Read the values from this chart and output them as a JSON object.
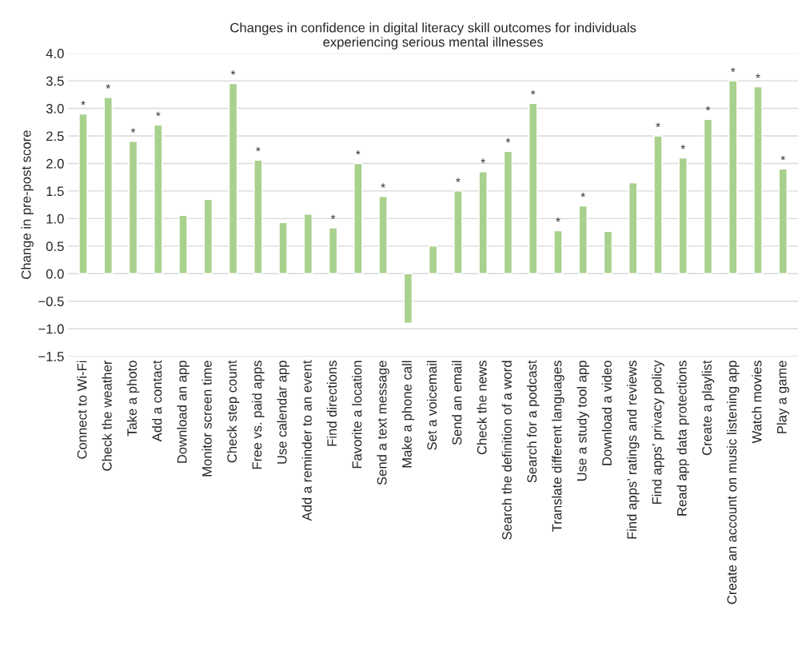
{
  "chart_data": {
    "type": "bar",
    "title": "Changes in confidence in digital literacy skill outcomes for individuals\nexperiencing serious mental illnesses",
    "ylabel": "Change in pre-post score",
    "categories": [
      "Connect to Wi-Fi",
      "Check the weather",
      "Take a photo",
      "Add a contact",
      "Download an app",
      "Monitor screen time",
      "Check step count",
      "Free vs. paid apps",
      "Use calendar app",
      "Add a reminder to an event",
      "Find directions",
      "Favorite a location",
      "Send a text message",
      "Make a phone call",
      "Set a voicemail",
      "Send an email",
      "Check the news",
      "Search the definition of a word",
      "Search for a podcast",
      "Translate different languages",
      "Use a study tool app",
      "Download a video",
      "Find apps’ ratings and reviews",
      "Find apps’ privacy policy",
      "Read app data protections",
      "Create a playlist",
      "Create an account on music listening app",
      "Watch movies",
      "Play a game"
    ],
    "values": [
      2.9,
      3.2,
      2.4,
      2.7,
      1.06,
      1.35,
      3.45,
      2.06,
      0.93,
      1.08,
      0.83,
      2.0,
      1.4,
      -0.9,
      0.5,
      1.5,
      1.85,
      2.22,
      3.09,
      0.78,
      1.23,
      0.77,
      1.65,
      2.5,
      2.1,
      2.8,
      3.5,
      3.39,
      1.9
    ],
    "value_labels": [
      "*",
      "*",
      "*",
      "*",
      null,
      null,
      "*",
      "*",
      null,
      null,
      "*",
      "*",
      "*",
      null,
      null,
      "*",
      "*",
      "*",
      "*",
      "*",
      "*",
      null,
      null,
      "*",
      "*",
      "*",
      "*",
      "*",
      "*"
    ],
    "color": "#a9d18e",
    "ylim": [
      -1.5,
      4.0
    ],
    "yticks": [
      {
        "value": -1.5,
        "label": "−1.5"
      },
      {
        "value": -1.0,
        "label": "−1.0"
      },
      {
        "value": -0.5,
        "label": "−0.5"
      },
      {
        "value": 0,
        "label": "0.0"
      },
      {
        "value": 0.5,
        "label": "0.5"
      },
      {
        "value": 1.0,
        "label": "1.0"
      },
      {
        "value": 1.5,
        "label": "1.5"
      },
      {
        "value": 2.0,
        "label": "2.0"
      },
      {
        "value": 2.5,
        "label": "2.5"
      },
      {
        "value": 3.0,
        "label": "3.0"
      },
      {
        "value": 3.5,
        "label": "3.5"
      },
      {
        "value": 4.0,
        "label": "4.0"
      }
    ],
    "grid": "y",
    "legend": false
  }
}
